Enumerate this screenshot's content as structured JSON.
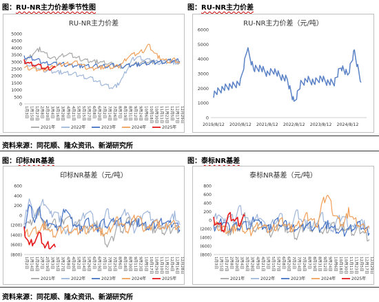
{
  "headers": {
    "top_left_prefix": "图：",
    "top_left": "RU-NR主力价差季节性图",
    "top_right_prefix": "图：",
    "top_right": "RU-NR主力价差",
    "bottom_left_prefix": "图：",
    "bottom_left": "印标NR基差",
    "bottom_right_prefix": "图：",
    "bottom_right": "泰标NR基差"
  },
  "source_note_top": "资料来源：同花顺、隆众资讯、新湖研究所",
  "source_note_bottom": "资料来源：同花顺、隆众资讯、新湖研究所",
  "colors": {
    "2021": "#a6a6a6",
    "2022": "#9fb6da",
    "2023": "#4472c4",
    "2024": "#f0a05a",
    "2025": "#e41a1c",
    "spread": "#5b82c6",
    "frame": "#bfbfbf"
  },
  "chart_data": [
    {
      "type": "line",
      "title": "RU-NR主力价差",
      "ylim": [
        0,
        5000
      ],
      "yticks": [
        "0",
        "500",
        "1000",
        "1500",
        "2000",
        "2500",
        "3000",
        "3500",
        "4000",
        "4500",
        "5000"
      ],
      "xticks": [
        "1月3日",
        "1月15日",
        "1月27日",
        "2月8日",
        "2月20日",
        "3月4日",
        "3月16日",
        "3月28日",
        "4月9日",
        "4月21日",
        "5月3日",
        "5月15日",
        "5月27日",
        "6月8日",
        "6月20日",
        "7月2日",
        "7月14日",
        "7月26日",
        "8月7日",
        "8月19日",
        "8月31日",
        "9月12日",
        "9月24日",
        "10月6日",
        "10月18日",
        "10月30日",
        "11月11日",
        "11月23日",
        "12月5日",
        "12月17日",
        "12月29日"
      ],
      "legend_position": "bottom",
      "series": [
        {
          "name": "2021年",
          "values": [
            3000,
            3300,
            3700,
            3900,
            3600,
            3300,
            3200,
            3400,
            3550,
            3500,
            3300,
            3200,
            3100,
            3050,
            3000,
            2950,
            2900,
            2800,
            2700,
            2650,
            2700,
            2800,
            2900,
            2950,
            3000,
            3000,
            2950,
            3000,
            3050,
            3000,
            2950
          ]
        },
        {
          "name": "2022年",
          "values": [
            2900,
            2800,
            2650,
            2500,
            2400,
            2350,
            2300,
            2250,
            2200,
            2150,
            2100,
            2000,
            1900,
            1800,
            1600,
            1450,
            1300,
            1150,
            1350,
            1850,
            2600,
            3200,
            3350,
            3200,
            3100,
            3000,
            2950,
            3000,
            3000,
            2950,
            2900
          ]
        },
        {
          "name": "2023年",
          "values": [
            3300,
            3250,
            3200,
            3050,
            2900,
            2900,
            2850,
            2850,
            2800,
            2750,
            2750,
            2700,
            2700,
            2650,
            2700,
            2700,
            2700,
            2750,
            2700,
            2700,
            2750,
            2800,
            2800,
            2850,
            2900,
            2950,
            3000,
            3000,
            3050,
            3100,
            3050
          ]
        },
        {
          "name": "2024年",
          "values": [
            2600,
            2550,
            2500,
            2450,
            2450,
            2550,
            2700,
            2800,
            2850,
            2900,
            2950,
            2800,
            2600,
            2500,
            2600,
            2600,
            2650,
            2600,
            2650,
            2900,
            3400,
            3500,
            3600,
            3800,
            4200,
            3700,
            3300,
            3100,
            3000,
            3150,
            2900
          ]
        },
        {
          "name": "2025年",
          "values": [
            3050,
            2900,
            2800,
            2700,
            2500,
            2550,
            2600
          ]
        }
      ]
    },
    {
      "type": "line",
      "title": "RU-NR主力价差（元/吨）",
      "ylim": [
        0,
        6000
      ],
      "yticks": [
        "0",
        "1000",
        "2000",
        "3000",
        "4000",
        "5000",
        "6000"
      ],
      "xticks": [
        "2019/8/12",
        "2020/8/12",
        "2021/8/12",
        "2022/8/12",
        "2023/8/12",
        "2024/8/12"
      ],
      "x": [
        "2019/8",
        "2019/11",
        "2020/2",
        "2020/5",
        "2020/8",
        "2020/11",
        "2021/2",
        "2021/5",
        "2021/8",
        "2021/11",
        "2022/2",
        "2022/5",
        "2022/8",
        "2022/11",
        "2023/2",
        "2023/5",
        "2023/8",
        "2023/11",
        "2024/2",
        "2024/5",
        "2024/8",
        "2024/11",
        "2025/2"
      ],
      "series": [
        {
          "values": [
            1600,
            1900,
            2100,
            2200,
            2400,
            4700,
            3300,
            3400,
            3000,
            3200,
            2800,
            2600,
            1000,
            2300,
            2600,
            2400,
            2700,
            2400,
            2400,
            3500,
            2900,
            4500,
            2400
          ]
        }
      ]
    },
    {
      "type": "line",
      "title": "印标NR基差（元/吨）",
      "ylim": [
        -800,
        600
      ],
      "yticks": [
        "(800)",
        "(600)",
        "(400)",
        "(200)",
        "0",
        "200",
        "400",
        "600"
      ],
      "xticks": [
        "1月2日",
        "1月14日",
        "1月26日",
        "2月7日",
        "2月19日",
        "3月3日",
        "3月15日",
        "3月27日",
        "4月8日",
        "4月20日",
        "5月2日",
        "5月14日",
        "5月26日",
        "6月7日",
        "6月19日",
        "7月1日",
        "7月13日",
        "7月25日",
        "8月6日",
        "8月18日",
        "8月30日",
        "9月11日",
        "9月23日",
        "10月5日",
        "10月17日",
        "10月29日",
        "11月10日",
        "11月22日",
        "12月4日",
        "12月16日",
        "12月28日"
      ],
      "legend_position": "bottom",
      "series": [
        {
          "name": "2021年",
          "values": [
            -100,
            -200,
            0,
            100,
            -300,
            -200,
            -150,
            -250,
            0,
            -100,
            -200,
            -150,
            -300,
            -250,
            -200,
            -400,
            -600,
            -500,
            -200,
            -300,
            -100,
            -200,
            -150,
            -250,
            -200,
            -300,
            -250,
            -350,
            -300,
            -250,
            -300
          ]
        },
        {
          "name": "2022年",
          "values": [
            -200,
            400,
            -100,
            150,
            300,
            0,
            100,
            -100,
            -400,
            -300,
            -200,
            -100,
            100,
            0,
            -300,
            -200,
            100,
            -100,
            -200,
            0,
            100,
            -300,
            -200,
            100,
            0,
            -100,
            -200,
            -300,
            -100,
            0,
            -200
          ]
        },
        {
          "name": "2023年",
          "values": [
            -300,
            200,
            -100,
            100,
            -200,
            -100,
            -300,
            -200,
            200,
            -100,
            -200,
            -300,
            -100,
            -200,
            -300,
            -100,
            -200,
            -150,
            -100,
            -150,
            -200,
            -100,
            -150,
            -200,
            -250,
            -200,
            -150,
            -100,
            -200,
            -150,
            -300
          ]
        },
        {
          "name": "2024年",
          "values": [
            -400,
            -350,
            -300,
            -300,
            -200,
            -350,
            -400,
            -300,
            -250,
            -300,
            -350,
            -300,
            -300,
            -250,
            -250,
            -350,
            -400,
            -200,
            -100,
            -200,
            -300,
            -100,
            0,
            -250,
            -300,
            -100,
            -200,
            -300,
            -150,
            -200,
            -250
          ]
        },
        {
          "name": "2025年",
          "values": [
            -300,
            -600,
            -500,
            -400,
            -650,
            -600,
            -650
          ]
        }
      ]
    },
    {
      "type": "line",
      "title": "泰标NR基差（元/吨）",
      "ylim": [
        -800,
        800
      ],
      "yticks": [
        "(800)",
        "(600)",
        "(400)",
        "(200)",
        "0",
        "200",
        "400",
        "600",
        "800"
      ],
      "xticks": [
        "1月3日",
        "1月15日",
        "1月27日",
        "2月8日",
        "2月20日",
        "3月4日",
        "3月16日",
        "3月28日",
        "4月9日",
        "4月21日",
        "5月3日",
        "5月15日",
        "5月27日",
        "6月8日",
        "6月20日",
        "7月2日",
        "7月14日",
        "7月26日",
        "8月7日",
        "8月19日",
        "8月31日",
        "9月12日",
        "9月24日",
        "10月6日",
        "10月18日",
        "10月30日",
        "11月11日",
        "11月23日",
        "12月5日",
        "12月17日",
        "12月29日"
      ],
      "legend_position": "bottom",
      "series": [
        {
          "name": "2021年",
          "values": [
            -100,
            -200,
            -100,
            -300,
            -150,
            -200,
            100,
            -100,
            -200,
            -150,
            -100,
            -300,
            -200,
            -100,
            -200,
            -300,
            -400,
            -200,
            -100,
            -200,
            -150,
            -300,
            -200,
            -100,
            -200,
            -150,
            -250,
            -300,
            -200,
            -300,
            -450
          ]
        },
        {
          "name": "2022年",
          "values": [
            0,
            200,
            -100,
            100,
            0,
            300,
            100,
            -100,
            0,
            100,
            -200,
            -100,
            0,
            100,
            -200,
            -100,
            200,
            0,
            -100,
            -200,
            0,
            100,
            -100,
            -200,
            0,
            100,
            -100,
            -200,
            0,
            -100,
            -200
          ]
        },
        {
          "name": "2023年",
          "values": [
            -200,
            -100,
            0,
            -200,
            -100,
            -150,
            -100,
            -200,
            100,
            -100,
            -150,
            -200,
            0,
            -100,
            -100,
            -200,
            -150,
            -200,
            -100,
            -150,
            -200,
            -150,
            -100,
            -200,
            -250,
            -300,
            -200,
            -150,
            -100,
            -200,
            -300
          ]
        },
        {
          "name": "2024年",
          "values": [
            -100,
            -150,
            -200,
            -250,
            -200,
            -100,
            -250,
            -300,
            -150,
            -100,
            -200,
            -250,
            -150,
            0,
            -100,
            -200,
            -150,
            -50,
            100,
            0,
            -100,
            400,
            600,
            200,
            0,
            -100,
            200,
            0,
            -100,
            -200,
            -150
          ]
        },
        {
          "name": "2025年",
          "values": [
            0,
            -100,
            -200,
            100,
            0,
            -50,
            100
          ]
        }
      ]
    }
  ]
}
